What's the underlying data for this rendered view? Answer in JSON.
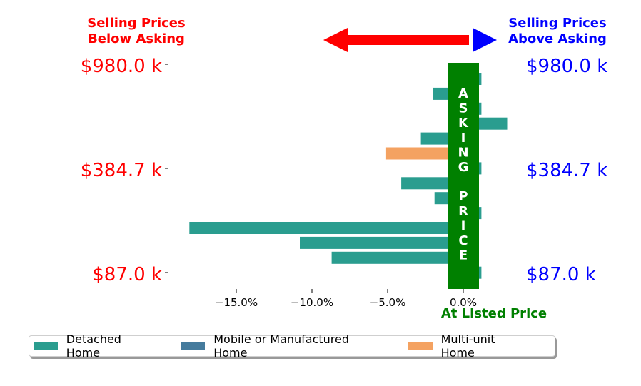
{
  "header": {
    "left_line1": "Selling Prices",
    "left_line2": "Below Asking",
    "right_line1": "Selling Prices",
    "right_line2": "Above Asking",
    "left_color": "#ff0000",
    "right_color": "#0000ff"
  },
  "price_labels": {
    "left": [
      "$980.0 k",
      "$384.7 k",
      "$87.0 k"
    ],
    "right": [
      "$980.0 k",
      "$384.7 k",
      "$87.0 k"
    ]
  },
  "asking_band": {
    "letters": [
      "A",
      "S",
      "K",
      "I",
      "N",
      "G",
      "",
      "P",
      "R",
      "I",
      "C",
      "E"
    ],
    "color": "#008000"
  },
  "at_listed_label": "At Listed Price",
  "chart_data": {
    "type": "bar",
    "orientation": "horizontal",
    "xlim": [
      -18.5,
      3.3
    ],
    "xticks": [
      "−15.0%",
      "−10.0%",
      "−5.0%",
      "0.0%"
    ],
    "xtick_values": [
      -15,
      -10,
      -5,
      0
    ],
    "bars": [
      {
        "value": 1.2,
        "type": "Detached Home"
      },
      {
        "value": -2.0,
        "type": "Detached Home"
      },
      {
        "value": 1.2,
        "type": "Detached Home"
      },
      {
        "value": 2.9,
        "type": "Detached Home"
      },
      {
        "value": -2.8,
        "type": "Detached Home"
      },
      {
        "value": -5.1,
        "type": "Multi-unit Home"
      },
      {
        "value": 1.2,
        "type": "Detached Home"
      },
      {
        "value": -4.1,
        "type": "Detached Home"
      },
      {
        "value": -1.9,
        "type": "Detached Home"
      },
      {
        "value": 1.2,
        "type": "Detached Home"
      },
      {
        "value": -18.1,
        "type": "Detached Home"
      },
      {
        "value": -10.8,
        "type": "Detached Home"
      },
      {
        "value": -8.7,
        "type": "Detached Home"
      },
      {
        "value": 1.2,
        "type": "Detached Home"
      }
    ],
    "legend": [
      {
        "label": "Detached Home",
        "color": "#2a9d8f"
      },
      {
        "label": "Mobile or Manufactured Home",
        "color": "#457b9d"
      },
      {
        "label": "Multi-unit Home",
        "color": "#f4a261"
      }
    ],
    "legend_position": "bottom",
    "grid": false
  }
}
